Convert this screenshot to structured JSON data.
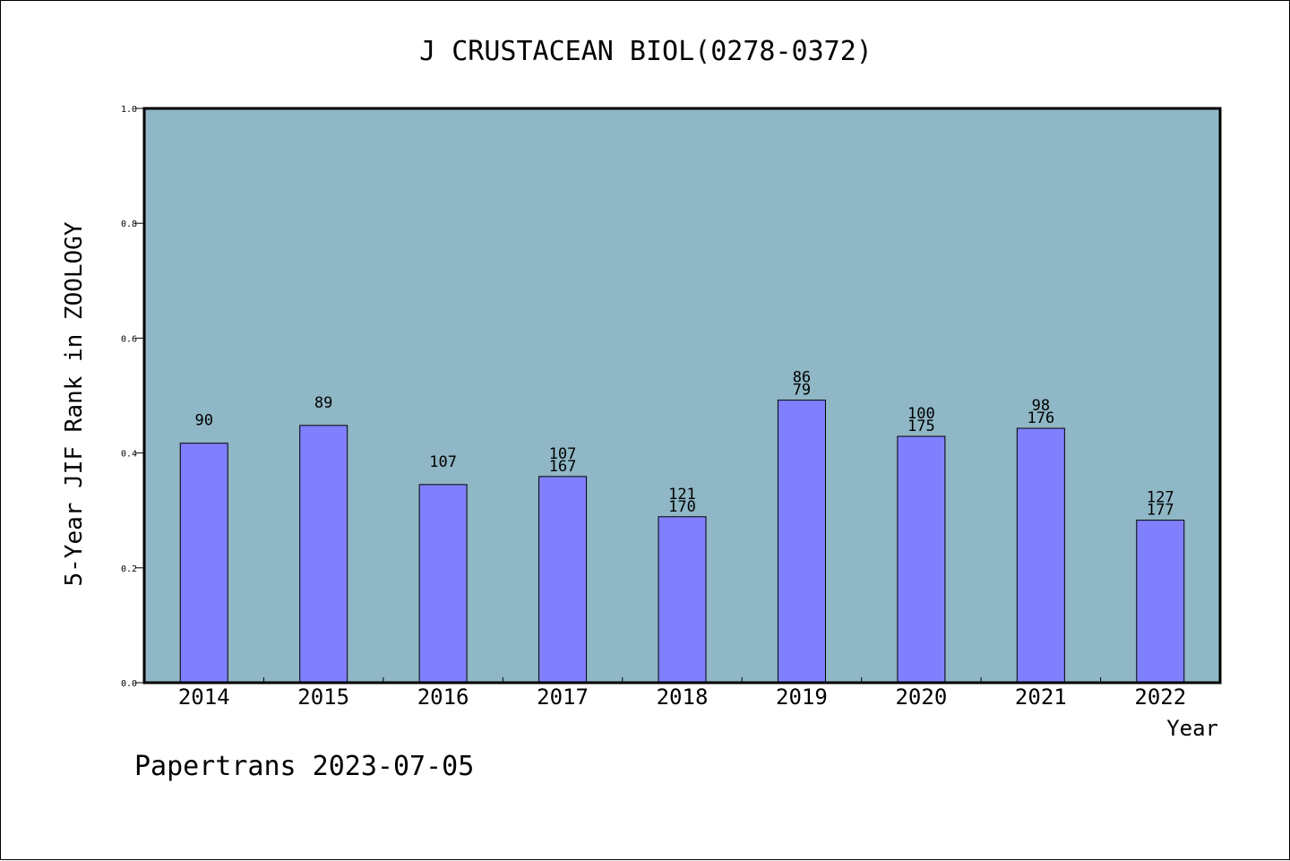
{
  "chart_data": {
    "type": "bar",
    "title": "J CRUSTACEAN BIOL(0278-0372)",
    "ylabel": "5-Year JIF Rank in ZOOLOGY",
    "xlabel": "Year",
    "footer": "Papertrans 2023-07-05",
    "categories": [
      "2014",
      "2015",
      "2016",
      "2017",
      "2018",
      "2019",
      "2020",
      "2021",
      "2022"
    ],
    "values": [
      0.417,
      0.448,
      0.345,
      0.359,
      0.289,
      0.492,
      0.429,
      0.443,
      0.283
    ],
    "labels_top": [
      "",
      "",
      "",
      "107",
      "121",
      "86",
      "100",
      "98",
      "127"
    ],
    "labels_bottom": [
      "90",
      "89",
      "107",
      "167",
      "170",
      "79",
      "175",
      "176",
      "177"
    ],
    "ylim": [
      0,
      1.0
    ],
    "yticks": [
      "0.0",
      "0.2",
      "0.4",
      "0.6",
      "0.8",
      "1.0"
    ],
    "grid": false,
    "legend": "none",
    "colors": {
      "plot_background": "#8fb7c5",
      "bar_fill": "#8080ff",
      "bar_stroke": "#000000"
    }
  }
}
